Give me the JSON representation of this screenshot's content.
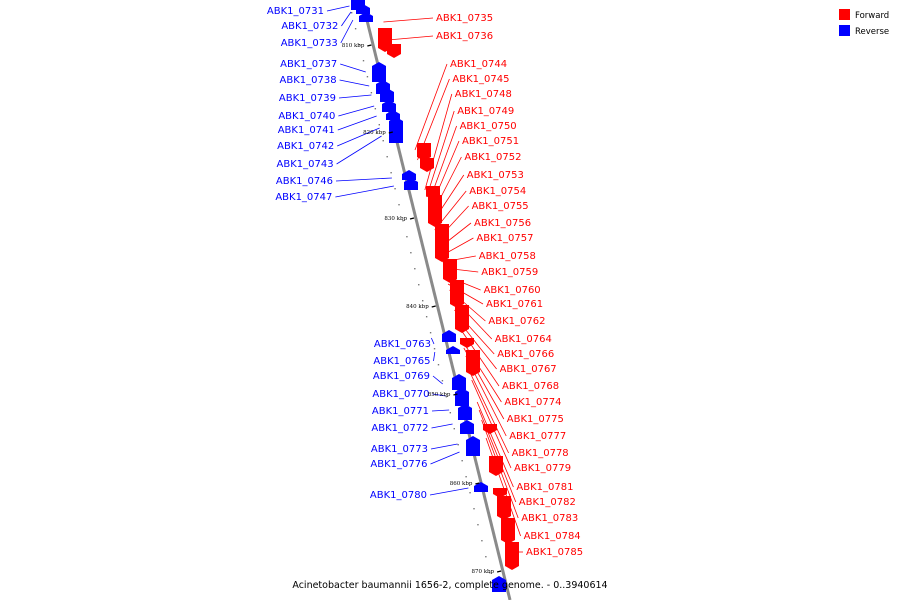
{
  "legend": {
    "forward": {
      "label": "Forward",
      "color": "#ff0000"
    },
    "reverse": {
      "label": "Reverse",
      "color": "#0000ff"
    }
  },
  "caption": "Acinetobacter baumannii 1656-2, complete genome. - 0..3940614",
  "ticks": [
    "810 kbp",
    "820 kbp",
    "830 kbp",
    "840 kbp",
    "850 kbp",
    "860 kbp",
    "870 kbp"
  ],
  "forward_genes": [
    "ABK1_0735",
    "ABK1_0736",
    "ABK1_0744",
    "ABK1_0745",
    "ABK1_0748",
    "ABK1_0749",
    "ABK1_0750",
    "ABK1_0751",
    "ABK1_0752",
    "ABK1_0753",
    "ABK1_0754",
    "ABK1_0755",
    "ABK1_0756",
    "ABK1_0757",
    "ABK1_0758",
    "ABK1_0759",
    "ABK1_0760",
    "ABK1_0761",
    "ABK1_0762",
    "ABK1_0764",
    "ABK1_0766",
    "ABK1_0767",
    "ABK1_0768",
    "ABK1_0774",
    "ABK1_0775",
    "ABK1_0777",
    "ABK1_0778",
    "ABK1_0779",
    "ABK1_0781",
    "ABK1_0782",
    "ABK1_0783",
    "ABK1_0784",
    "ABK1_0785"
  ],
  "reverse_genes": [
    "ABK1_0731",
    "ABK1_0732",
    "ABK1_0733",
    "ABK1_0737",
    "ABK1_0738",
    "ABK1_0739",
    "ABK1_0740",
    "ABK1_0741",
    "ABK1_0742",
    "ABK1_0743",
    "ABK1_0746",
    "ABK1_0747",
    "ABK1_0763",
    "ABK1_0765",
    "ABK1_0769",
    "ABK1_0770",
    "ABK1_0771",
    "ABK1_0772",
    "ABK1_0773",
    "ABK1_0776",
    "ABK1_0780"
  ]
}
